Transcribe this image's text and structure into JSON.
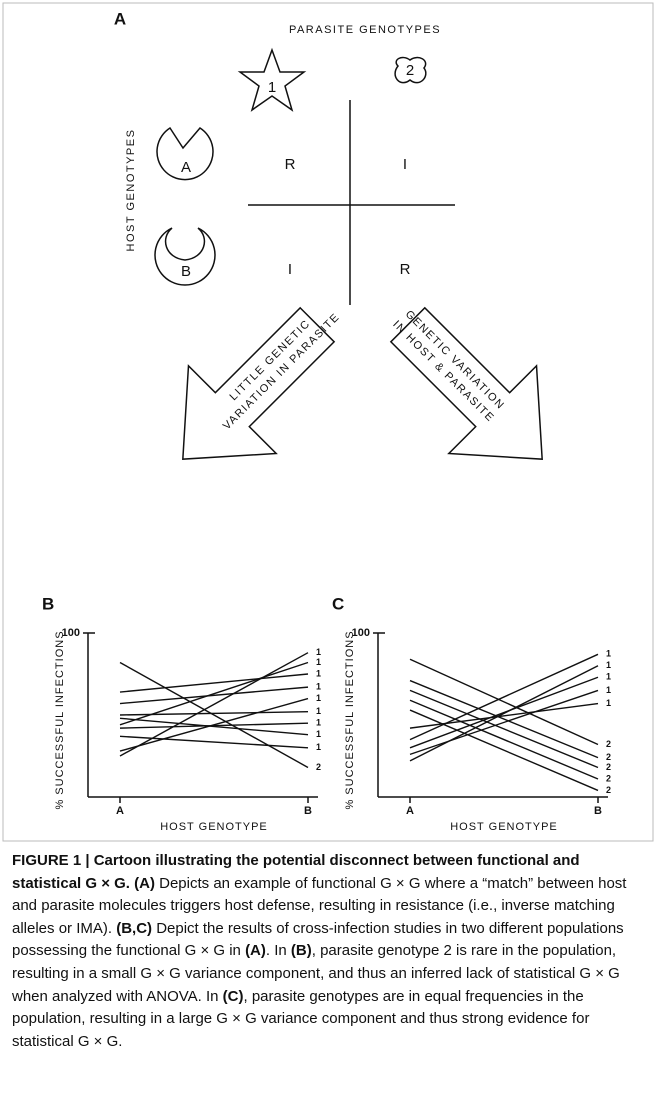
{
  "figure": {
    "panel_a": {
      "label": "A",
      "title": "PARASITE GENOTYPES",
      "parasites": [
        "1",
        "2"
      ],
      "host_axis_label": "HOST GENOTYPES",
      "hosts": [
        "A",
        "B"
      ],
      "outcomes": [
        [
          "R",
          "I"
        ],
        [
          "I",
          "R"
        ]
      ]
    },
    "arrows": [
      {
        "lines": [
          "LITTLE GENETIC",
          "VARIATION IN PARASITE"
        ]
      },
      {
        "lines": [
          "GENETIC VARIATION",
          "IN HOST & PARASITE"
        ]
      }
    ]
  },
  "chart_data": [
    {
      "type": "line",
      "panel": "B",
      "ylabel": "% SUCCESSFUL INFECTIONS",
      "xlabel": "HOST GENOTYPE",
      "categories": [
        "A",
        "B"
      ],
      "ylim": [
        0,
        100
      ],
      "yticks": [
        100
      ],
      "series": [
        {
          "name": "2",
          "color": "#111111",
          "values": [
            82,
            18
          ]
        },
        {
          "name": "1",
          "color": "#111111",
          "values": [
            25,
            88
          ]
        },
        {
          "name": "1",
          "color": "#111111",
          "values": [
            44,
            82
          ]
        },
        {
          "name": "1",
          "color": "#111111",
          "values": [
            64,
            75
          ]
        },
        {
          "name": "1",
          "color": "#111111",
          "values": [
            57,
            67
          ]
        },
        {
          "name": "1",
          "color": "#111111",
          "values": [
            28,
            60
          ]
        },
        {
          "name": "1",
          "color": "#111111",
          "values": [
            50,
            52
          ]
        },
        {
          "name": "1",
          "color": "#111111",
          "values": [
            42,
            45
          ]
        },
        {
          "name": "1",
          "color": "#111111",
          "values": [
            48,
            38
          ]
        },
        {
          "name": "1",
          "color": "#111111",
          "values": [
            37,
            30
          ]
        }
      ]
    },
    {
      "type": "line",
      "panel": "C",
      "ylabel": "% SUCCESSFUL INFECTIONS",
      "xlabel": "HOST GENOTYPE",
      "categories": [
        "A",
        "B"
      ],
      "ylim": [
        0,
        100
      ],
      "yticks": [
        100
      ],
      "series": [
        {
          "name": "1",
          "color": "#111111",
          "values": [
            35,
            87
          ]
        },
        {
          "name": "1",
          "color": "#111111",
          "values": [
            22,
            80
          ]
        },
        {
          "name": "1",
          "color": "#111111",
          "values": [
            30,
            73
          ]
        },
        {
          "name": "1",
          "color": "#111111",
          "values": [
            26,
            65
          ]
        },
        {
          "name": "1",
          "color": "#111111",
          "values": [
            42,
            57
          ]
        },
        {
          "name": "2",
          "color": "#111111",
          "values": [
            84,
            32
          ]
        },
        {
          "name": "2",
          "color": "#111111",
          "values": [
            71,
            24
          ]
        },
        {
          "name": "2",
          "color": "#111111",
          "values": [
            65,
            18
          ]
        },
        {
          "name": "2",
          "color": "#111111",
          "values": [
            59,
            11
          ]
        },
        {
          "name": "2",
          "color": "#111111",
          "values": [
            53,
            4
          ]
        }
      ]
    }
  ],
  "caption": {
    "runs": [
      {
        "text": "FIGURE 1 | Cartoon illustrating the potential disconnect between functional and statistical G × G. (A)",
        "bold": true
      },
      {
        "text": " Depicts an example of functional G × G where a “match” between host and parasite molecules triggers host defense, resulting in resistance (i.e., inverse matching alleles or IMA). ",
        "bold": false
      },
      {
        "text": "(B,C)",
        "bold": true
      },
      {
        "text": " Depict the results of cross-infection studies in two different populations possessing the functional G × G in ",
        "bold": false
      },
      {
        "text": "(A)",
        "bold": true
      },
      {
        "text": ". In ",
        "bold": false
      },
      {
        "text": "(B)",
        "bold": true
      },
      {
        "text": ", parasite genotype 2 is rare in the population, resulting in a small G × G variance component, and thus an inferred lack of statistical G × G when analyzed with ANOVA. In ",
        "bold": false
      },
      {
        "text": "(C)",
        "bold": true
      },
      {
        "text": ", parasite genotypes are in equal frequencies in the population, resulting in a large G × G variance component and thus strong evidence for statistical G × G.",
        "bold": false
      }
    ]
  }
}
